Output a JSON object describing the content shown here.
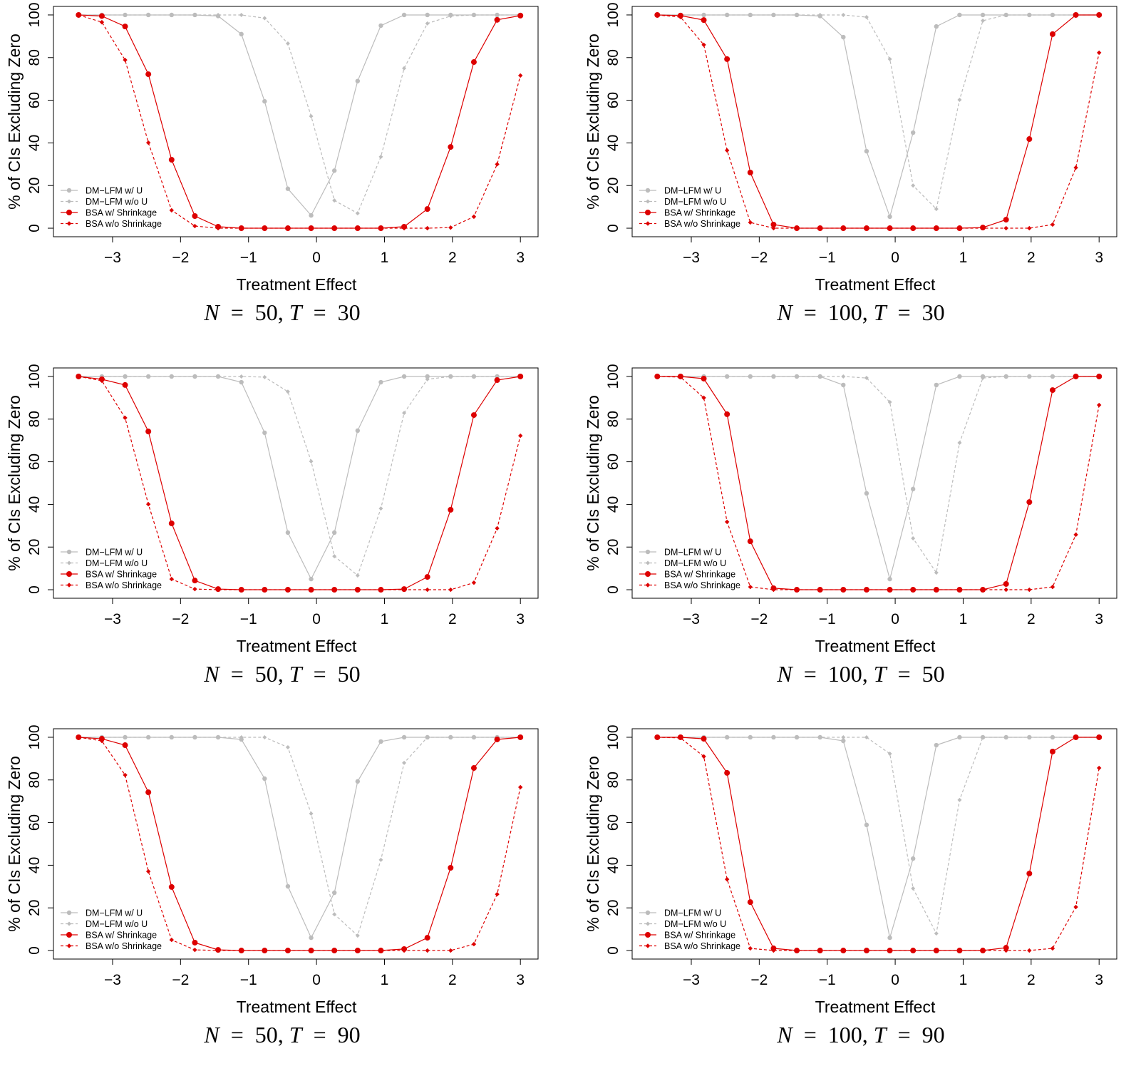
{
  "colors": {
    "dm": "#bcbcbc",
    "bsa": "#dd0000"
  },
  "legend": [
    "DM−LFM w/ U",
    "DM−LFM w/o U",
    "BSA w/ Shrinkage",
    "BSA w/o Shrinkage"
  ],
  "chart_data": [
    {
      "type": "line",
      "title": "N = 50, T = 30",
      "xlabel": "Treatment Effect",
      "ylabel": "% of CIs Excluding Zero",
      "xticks": [
        -3,
        -2,
        -1,
        0,
        1,
        2,
        3
      ],
      "yticks": [
        0,
        20,
        40,
        60,
        80,
        100
      ],
      "xlim": [
        -3.87,
        3.26
      ],
      "ylim": [
        -4,
        104
      ],
      "legend_position": "bottom-left",
      "x_range": [
        -3.5,
        3
      ],
      "n_points": 20,
      "series": [
        {
          "name": "DM−LFM w/ U",
          "values": [
            100,
            100,
            100,
            100,
            100,
            100,
            99.5,
            91,
            59.5,
            18.5,
            6,
            27,
            69,
            95,
            100,
            100,
            100,
            100,
            100,
            100
          ]
        },
        {
          "name": "DM−LFM w/o U",
          "values": [
            100,
            100,
            100,
            100,
            100,
            100,
            100,
            100,
            98.5,
            86.6,
            52.5,
            13,
            7,
            33.5,
            75,
            96,
            99.5,
            100,
            100,
            100
          ]
        },
        {
          "name": "BSA w/ Shrinkage",
          "values": [
            100,
            99.5,
            94.6,
            72.2,
            32.1,
            5.7,
            0.7,
            0,
            0,
            0,
            0,
            0,
            0,
            0,
            0.7,
            9,
            38.1,
            77.9,
            97.7,
            99.7
          ]
        },
        {
          "name": "BSA w/o Shrinkage",
          "values": [
            100,
            96.6,
            78.9,
            40.1,
            8.4,
            1,
            0,
            0,
            0,
            0,
            0,
            0,
            0,
            0,
            0,
            0,
            0.3,
            5.4,
            30,
            71.6
          ]
        }
      ]
    },
    {
      "type": "line",
      "title": "N = 100, T = 30",
      "xlabel": "Treatment Effect",
      "ylabel": "% of CIs Excluding Zero",
      "xticks": [
        -3,
        -2,
        -1,
        0,
        1,
        2,
        3
      ],
      "yticks": [
        0,
        20,
        40,
        60,
        80,
        100
      ],
      "xlim": [
        -3.87,
        3.26
      ],
      "ylim": [
        -4,
        104
      ],
      "legend_position": "bottom-left",
      "x_range": [
        -3.5,
        3
      ],
      "n_points": 20,
      "series": [
        {
          "name": "DM−LFM w/ U",
          "values": [
            100,
            100,
            100,
            100,
            100,
            100,
            100,
            99.5,
            89.6,
            36.1,
            5.4,
            44.8,
            94.6,
            100,
            100,
            100,
            100,
            100,
            100,
            100
          ]
        },
        {
          "name": "DM−LFM w/o U",
          "values": [
            100,
            100,
            100,
            100,
            100,
            100,
            100,
            100,
            100,
            99,
            79.3,
            20,
            9,
            60.2,
            97.3,
            100,
            100,
            100,
            100,
            100
          ]
        },
        {
          "name": "BSA w/ Shrinkage",
          "values": [
            100,
            99.7,
            97.6,
            79.3,
            26.1,
            1.7,
            0,
            0,
            0,
            0,
            0,
            0,
            0,
            0,
            0.3,
            4,
            41.8,
            91,
            100,
            100
          ]
        },
        {
          "name": "BSA w/o Shrinkage",
          "values": [
            100,
            99,
            86,
            36.5,
            2.7,
            0,
            0,
            0,
            0,
            0,
            0,
            0,
            0,
            0,
            0,
            0,
            0,
            1.7,
            28.4,
            82.3
          ]
        }
      ]
    },
    {
      "type": "line",
      "title": "N = 50, T = 50",
      "xlabel": "Treatment Effect",
      "ylabel": "% of CIs Excluding Zero",
      "xticks": [
        -3,
        -2,
        -1,
        0,
        1,
        2,
        3
      ],
      "yticks": [
        0,
        20,
        40,
        60,
        80,
        100
      ],
      "xlim": [
        -3.87,
        3.26
      ],
      "ylim": [
        -4,
        104
      ],
      "legend_position": "bottom-left",
      "x_range": [
        -3.5,
        3
      ],
      "n_points": 20,
      "series": [
        {
          "name": "DM−LFM w/ U",
          "values": [
            100,
            100,
            100,
            100,
            100,
            100,
            100,
            97.3,
            73.6,
            26.8,
            5,
            26.8,
            74.6,
            97.3,
            100,
            100,
            100,
            100,
            100,
            100
          ]
        },
        {
          "name": "DM−LFM w/o U",
          "values": [
            100,
            100,
            100,
            100,
            100,
            100,
            100,
            100,
            99.7,
            92.9,
            60.2,
            15.7,
            6.7,
            38.1,
            82.9,
            98.7,
            100,
            100,
            100,
            100
          ]
        },
        {
          "name": "BSA w/ Shrinkage",
          "values": [
            100,
            98.7,
            96,
            74.2,
            31.1,
            4.3,
            0.3,
            0,
            0,
            0,
            0,
            0,
            0,
            0,
            0.3,
            6,
            37.5,
            81.9,
            98.3,
            100
          ]
        },
        {
          "name": "BSA w/o Shrinkage",
          "values": [
            100,
            98,
            80.6,
            40.1,
            5,
            0.3,
            0,
            0,
            0,
            0,
            0,
            0,
            0,
            0,
            0,
            0,
            0,
            3.3,
            28.8,
            72.2
          ]
        }
      ]
    },
    {
      "type": "line",
      "title": "N = 100, T = 50",
      "xlabel": "Treatment Effect",
      "ylabel": "% of CIs Excluding Zero",
      "xticks": [
        -3,
        -2,
        -1,
        0,
        1,
        2,
        3
      ],
      "yticks": [
        0,
        20,
        40,
        60,
        80,
        100
      ],
      "xlim": [
        -3.87,
        3.26
      ],
      "ylim": [
        -4,
        104
      ],
      "legend_position": "bottom-left",
      "x_range": [
        -3.5,
        3
      ],
      "n_points": 20,
      "series": [
        {
          "name": "DM−LFM w/ U",
          "values": [
            100,
            100,
            100,
            100,
            100,
            100,
            100,
            100,
            96,
            45.2,
            5,
            47.2,
            96,
            100,
            100,
            100,
            100,
            100,
            100,
            100
          ]
        },
        {
          "name": "DM−LFM w/o U",
          "values": [
            100,
            100,
            100,
            100,
            100,
            100,
            100,
            100,
            100,
            99.3,
            88,
            24.1,
            8,
            68.9,
            99.3,
            100,
            100,
            100,
            100,
            100
          ]
        },
        {
          "name": "BSA w/ Shrinkage",
          "values": [
            100,
            100,
            99,
            82.3,
            22.7,
            0.7,
            0,
            0,
            0,
            0,
            0,
            0,
            0,
            0,
            0,
            2.7,
            41.1,
            93.6,
            100,
            100
          ]
        },
        {
          "name": "BSA w/o Shrinkage",
          "values": [
            100,
            99.7,
            90,
            31.8,
            1.3,
            0,
            0,
            0,
            0,
            0,
            0,
            0,
            0,
            0,
            0,
            0,
            0,
            1.3,
            25.8,
            86.6
          ]
        }
      ]
    },
    {
      "type": "line",
      "title": "N = 50, T = 90",
      "xlabel": "Treatment Effect",
      "ylabel": "% of CIs Excluding Zero",
      "xticks": [
        -3,
        -2,
        -1,
        0,
        1,
        2,
        3
      ],
      "yticks": [
        0,
        20,
        40,
        60,
        80,
        100
      ],
      "xlim": [
        -3.87,
        3.26
      ],
      "ylim": [
        -4,
        104
      ],
      "legend_position": "bottom-left",
      "x_range": [
        -3.5,
        3
      ],
      "n_points": 20,
      "series": [
        {
          "name": "DM−LFM w/ U",
          "values": [
            100,
            100,
            100,
            100,
            100,
            100,
            100,
            99,
            80.6,
            30.1,
            6,
            27.1,
            79.3,
            98,
            100,
            100,
            100,
            100,
            100,
            100
          ]
        },
        {
          "name": "DM−LFM w/o U",
          "values": [
            100,
            100,
            100,
            100,
            100,
            100,
            100,
            100,
            100,
            95.3,
            64.2,
            17,
            7,
            42.5,
            88,
            100,
            100,
            100,
            100,
            100
          ]
        },
        {
          "name": "BSA w/ Shrinkage",
          "values": [
            100,
            99.3,
            96.3,
            74.2,
            29.8,
            3.7,
            0.3,
            0,
            0,
            0,
            0,
            0,
            0,
            0,
            0.7,
            6,
            38.8,
            85.6,
            99,
            100
          ]
        },
        {
          "name": "BSA w/o Shrinkage",
          "values": [
            100,
            98.3,
            82.3,
            37.1,
            5,
            0.3,
            0,
            0,
            0,
            0,
            0,
            0,
            0,
            0,
            0,
            0,
            0,
            3,
            26.4,
            76.6
          ]
        }
      ]
    },
    {
      "type": "line",
      "title": "N = 100, T = 90",
      "xlabel": "Treatment Effect",
      "ylabel": "% of CIs Excluding Zero",
      "xticks": [
        -3,
        -2,
        -1,
        0,
        1,
        2,
        3
      ],
      "yticks": [
        0,
        20,
        40,
        60,
        80,
        100
      ],
      "xlim": [
        -3.87,
        3.26
      ],
      "ylim": [
        -4,
        104
      ],
      "legend_position": "bottom-left",
      "x_range": [
        -3.5,
        3
      ],
      "n_points": 20,
      "series": [
        {
          "name": "DM−LFM w/ U",
          "values": [
            100,
            100,
            100,
            100,
            100,
            100,
            100,
            100,
            98.3,
            58.9,
            6,
            43.1,
            96.3,
            100,
            100,
            100,
            100,
            100,
            100,
            100
          ]
        },
        {
          "name": "DM−LFM w/o U",
          "values": [
            100,
            100,
            100,
            100,
            100,
            100,
            100,
            100,
            100,
            100,
            92.3,
            29.1,
            8,
            70.6,
            100,
            100,
            100,
            100,
            100,
            100
          ]
        },
        {
          "name": "BSA w/ Shrinkage",
          "values": [
            100,
            100,
            99.3,
            83.3,
            22.7,
            1,
            0,
            0,
            0,
            0,
            0,
            0,
            0,
            0,
            0,
            1.3,
            36.1,
            93.3,
            100,
            100
          ]
        },
        {
          "name": "BSA w/o Shrinkage",
          "values": [
            100,
            99.7,
            91,
            33.4,
            1,
            0,
            0,
            0,
            0,
            0,
            0,
            0,
            0,
            0,
            0,
            0,
            0,
            1,
            20.4,
            85.6
          ]
        }
      ]
    }
  ]
}
